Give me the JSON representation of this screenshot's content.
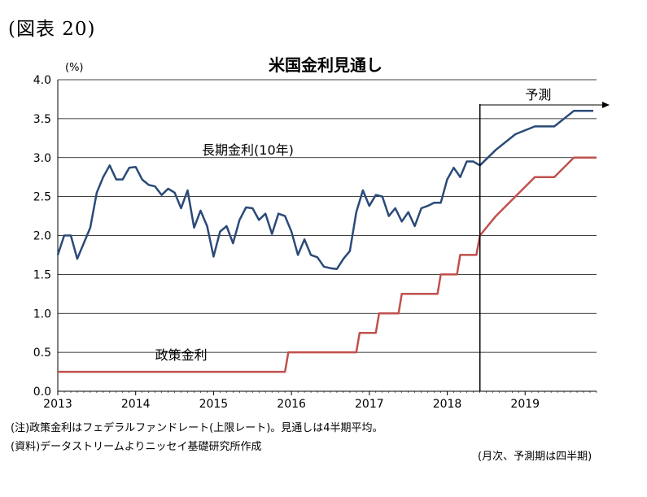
{
  "figure_label": "(図表 20)",
  "notes": {
    "note1": "(注)政策金利はフェデラルファンドレート(上限レート)。見通しは4半期平均。",
    "note2": "(資料)データストリームよりニッセイ基礎研究所作成",
    "note3": "(月次、予測期は四半期)"
  },
  "chart_data": {
    "type": "line",
    "title": "米国金利見通し",
    "ylabel": "(%)",
    "xlabel": "",
    "ylim": [
      0,
      4.0
    ],
    "xlim": [
      2013.0,
      2019.917
    ],
    "yticks": [
      "0.0",
      "0.5",
      "1.0",
      "1.5",
      "2.0",
      "2.5",
      "3.0",
      "3.5",
      "4.0"
    ],
    "xticks": [
      "2013",
      "2014",
      "2015",
      "2016",
      "2017",
      "2018",
      "2019"
    ],
    "grid": "horizontal",
    "forecast_start": 2018.42,
    "forecast_label": "予測",
    "colors": {
      "long_term": "#2a4a78",
      "policy": "#c0504d"
    },
    "series": [
      {
        "name": "長期金利(10年)",
        "x": [
          2013.0,
          2013.083,
          2013.167,
          2013.25,
          2013.333,
          2013.417,
          2013.5,
          2013.583,
          2013.667,
          2013.75,
          2013.833,
          2013.917,
          2014.0,
          2014.083,
          2014.167,
          2014.25,
          2014.333,
          2014.417,
          2014.5,
          2014.583,
          2014.667,
          2014.75,
          2014.833,
          2014.917,
          2015.0,
          2015.083,
          2015.167,
          2015.25,
          2015.333,
          2015.417,
          2015.5,
          2015.583,
          2015.667,
          2015.75,
          2015.833,
          2015.917,
          2016.0,
          2016.083,
          2016.167,
          2016.25,
          2016.333,
          2016.417,
          2016.5,
          2016.583,
          2016.667,
          2016.75,
          2016.833,
          2016.917,
          2017.0,
          2017.083,
          2017.167,
          2017.25,
          2017.333,
          2017.417,
          2017.5,
          2017.583,
          2017.667,
          2017.75,
          2017.833,
          2017.917,
          2018.0,
          2018.083,
          2018.167,
          2018.25,
          2018.333,
          2018.42,
          2018.625,
          2018.875,
          2019.125,
          2019.375,
          2019.625,
          2019.875
        ],
        "values": [
          1.75,
          2.0,
          2.0,
          1.7,
          1.9,
          2.1,
          2.55,
          2.75,
          2.9,
          2.72,
          2.72,
          2.87,
          2.88,
          2.72,
          2.65,
          2.63,
          2.52,
          2.6,
          2.55,
          2.35,
          2.58,
          2.1,
          2.32,
          2.12,
          1.73,
          2.05,
          2.12,
          1.9,
          2.2,
          2.36,
          2.35,
          2.2,
          2.28,
          2.02,
          2.28,
          2.25,
          2.05,
          1.75,
          1.95,
          1.75,
          1.72,
          1.6,
          1.58,
          1.57,
          1.7,
          1.8,
          2.3,
          2.58,
          2.38,
          2.52,
          2.5,
          2.25,
          2.35,
          2.18,
          2.3,
          2.12,
          2.35,
          2.38,
          2.42,
          2.42,
          2.72,
          2.87,
          2.75,
          2.95,
          2.95,
          2.9,
          3.1,
          3.3,
          3.4,
          3.4,
          3.6,
          3.6
        ]
      },
      {
        "name": "政策金利",
        "step": true,
        "x": [
          2013.0,
          2015.917,
          2015.96,
          2016.0,
          2016.833,
          2016.875,
          2016.917,
          2017.083,
          2017.125,
          2017.167,
          2017.375,
          2017.417,
          2017.458,
          2017.875,
          2017.917,
          2017.958,
          2018.125,
          2018.167,
          2018.208,
          2018.375,
          2018.42,
          2018.625,
          2018.875,
          2019.125,
          2019.375,
          2019.625,
          2019.917
        ],
        "values": [
          0.25,
          0.25,
          0.5,
          0.5,
          0.5,
          0.75,
          0.75,
          0.75,
          1.0,
          1.0,
          1.0,
          1.25,
          1.25,
          1.25,
          1.5,
          1.5,
          1.5,
          1.75,
          1.75,
          1.75,
          2.0,
          2.25,
          2.5,
          2.75,
          2.75,
          3.0,
          3.0
        ]
      }
    ],
    "annotations": [
      {
        "text": "長期金利(10年)",
        "x": 2014.85,
        "y": 3.1
      },
      {
        "text": "政策金利",
        "x": 2014.25,
        "y": 0.47
      }
    ]
  }
}
